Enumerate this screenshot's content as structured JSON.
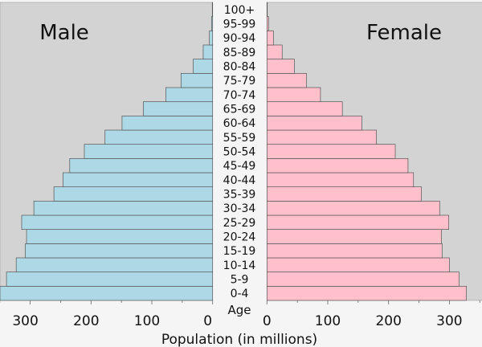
{
  "chart_data": {
    "type": "bar",
    "orientation": "horizontal-pyramid",
    "xlabel": "Population (in millions)",
    "ylabel": "Age",
    "categories": [
      "0-4",
      "5-9",
      "10-14",
      "15-19",
      "20-24",
      "25-29",
      "30-34",
      "35-39",
      "40-44",
      "45-49",
      "50-54",
      "55-59",
      "60-64",
      "65-69",
      "70-74",
      "75-79",
      "80-84",
      "85-89",
      "90-94",
      "95-99",
      "100+"
    ],
    "series": [
      {
        "name": "Male",
        "side": "left",
        "color": "#add8e6",
        "values": [
          352,
          339,
          323,
          308,
          306,
          314,
          294,
          261,
          246,
          235,
          211,
          177,
          149,
          114,
          77,
          52,
          32,
          15.5,
          5.3,
          1.8,
          0.5
        ]
      },
      {
        "name": "Female",
        "side": "right",
        "color": "#ffc0cb",
        "values": [
          328,
          316,
          300,
          288,
          287,
          299,
          284,
          254,
          241,
          232,
          211,
          180,
          156,
          124,
          88,
          65,
          45,
          25,
          10.6,
          2.6,
          0.5
        ]
      }
    ],
    "xlim": [
      0,
      350
    ],
    "xticks": [
      0,
      100,
      200,
      300
    ],
    "xtick_labels": [
      "0",
      "100",
      "200",
      "300"
    ],
    "plot_background": "#d3d3d3",
    "grid": false
  }
}
